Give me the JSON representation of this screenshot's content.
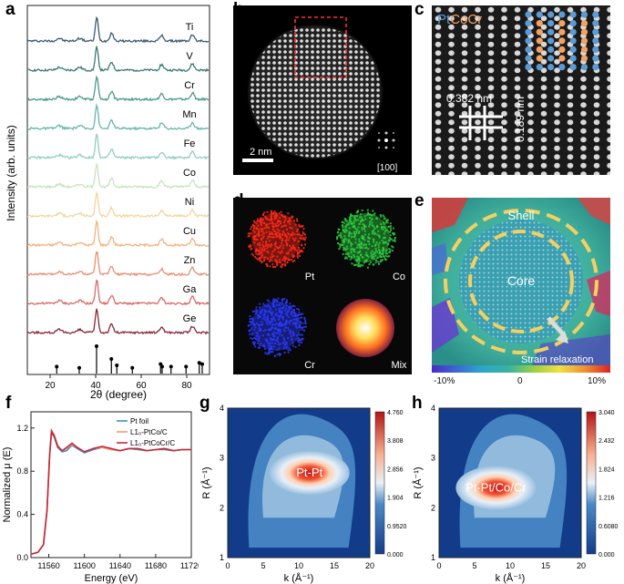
{
  "panels": {
    "a": "a",
    "b": "b",
    "c": "c",
    "d": "d",
    "e": "e",
    "f": "f",
    "g": "g",
    "h": "h"
  },
  "panel_a": {
    "ylabel": "Intensity (arb. units)",
    "xlabel": "2θ (degree)",
    "elements": [
      "Ti",
      "V",
      "Cr",
      "Mn",
      "Fe",
      "Co",
      "Ni",
      "Cu",
      "Zn",
      "Ga",
      "Ge"
    ],
    "colors": [
      "#3c5a78",
      "#3a7a72",
      "#4a9a8a",
      "#66b6a8",
      "#8fcdbf",
      "#c9e2c0",
      "#f5d49c",
      "#f3b17e",
      "#e98f74",
      "#d86a6a",
      "#8a2438"
    ],
    "xticks": [
      "20",
      "40",
      "60",
      "80"
    ],
    "xrange": [
      10,
      90
    ],
    "reference_sticks": [
      {
        "x": 22.9,
        "h": 0.2
      },
      {
        "x": 32.8,
        "h": 0.15
      },
      {
        "x": 40.4,
        "h": 1.0
      },
      {
        "x": 46.9,
        "h": 0.5
      },
      {
        "x": 49.3,
        "h": 0.25
      },
      {
        "x": 56.1,
        "h": 0.15
      },
      {
        "x": 68.5,
        "h": 0.3
      },
      {
        "x": 69.2,
        "h": 0.2
      },
      {
        "x": 73.1,
        "h": 0.2
      },
      {
        "x": 79.7,
        "h": 0.2
      },
      {
        "x": 85.5,
        "h": 0.35
      },
      {
        "x": 86.8,
        "h": 0.3
      }
    ]
  },
  "panel_b": {
    "scalebar": "2 nm",
    "zone_axis": "[100]"
  },
  "panel_c": {
    "legend_pt": "Pt",
    "legend_cocr": "CoCr",
    "spacing_h": "0.382 nm",
    "spacing_v": "0.189 nm",
    "pt_color": "#5b9bd5",
    "cocr_color": "#f4a261"
  },
  "panel_d": {
    "maps": [
      {
        "label": "Pt",
        "color": "#ff2a1a"
      },
      {
        "label": "Co",
        "color": "#2ecc40"
      },
      {
        "label": "Cr",
        "color": "#2a3aff"
      },
      {
        "label": "Mix",
        "color": "#ffcc00"
      }
    ]
  },
  "panel_e": {
    "shell_label": "Shell",
    "core_label": "Core",
    "arrow_label": "Strain relaxation",
    "colorbar_ticks": [
      "-10%",
      "0",
      "10%"
    ]
  },
  "chart_data": [
    {
      "type": "line",
      "panel": "f",
      "xlabel": "Energy (eV)",
      "ylabel": "Normalized μ (E)",
      "xlim": [
        11540,
        11720
      ],
      "ylim": [
        0.0,
        1.35
      ],
      "xticks": [
        "11560",
        "11600",
        "11640",
        "11680",
        "11720"
      ],
      "yticks": [
        "0.0",
        "0.4",
        "0.8",
        "1.2"
      ],
      "series": [
        {
          "name": "Pt foil",
          "color": "#3c8fc2",
          "x": [
            11540,
            11548,
            11554,
            11558,
            11561,
            11563,
            11566,
            11570,
            11575,
            11580,
            11586,
            11592,
            11600,
            11610,
            11620,
            11630,
            11640,
            11650,
            11660,
            11670,
            11680,
            11690,
            11700,
            11710,
            11720
          ],
          "y": [
            0.03,
            0.05,
            0.12,
            0.45,
            0.95,
            1.15,
            1.12,
            1.02,
            0.98,
            0.99,
            1.04,
            1.01,
            0.97,
            1.0,
            1.02,
            1.0,
            0.99,
            1.01,
            1.0,
            0.99,
            1.0,
            1.0,
            0.99,
            1.0,
            1.0
          ]
        },
        {
          "name": "L1₀-PtCo/C",
          "color": "#f0a070",
          "x": [
            11540,
            11548,
            11554,
            11558,
            11561,
            11563,
            11566,
            11570,
            11575,
            11580,
            11586,
            11592,
            11600,
            11610,
            11620,
            11630,
            11640,
            11650,
            11660,
            11670,
            11680,
            11690,
            11700,
            11710,
            11720
          ],
          "y": [
            0.03,
            0.05,
            0.12,
            0.44,
            0.96,
            1.18,
            1.14,
            1.04,
            0.99,
            1.01,
            1.05,
            1.02,
            0.98,
            1.01,
            1.02,
            1.0,
            0.99,
            1.01,
            1.01,
            0.99,
            1.0,
            1.01,
            0.99,
            1.0,
            1.0
          ]
        },
        {
          "name": "L1₀-PtCoCr/C",
          "color": "#c8283a",
          "x": [
            11540,
            11548,
            11554,
            11558,
            11561,
            11563,
            11566,
            11570,
            11575,
            11580,
            11586,
            11592,
            11600,
            11610,
            11620,
            11630,
            11640,
            11650,
            11660,
            11670,
            11680,
            11690,
            11700,
            11710,
            11720
          ],
          "y": [
            0.03,
            0.05,
            0.12,
            0.43,
            0.95,
            1.17,
            1.13,
            1.03,
            0.99,
            1.02,
            1.06,
            1.02,
            0.98,
            1.01,
            1.03,
            1.01,
            0.99,
            1.01,
            1.01,
            0.99,
            1.0,
            1.01,
            0.99,
            1.0,
            1.0
          ]
        }
      ]
    },
    {
      "type": "heatmap",
      "panel": "g",
      "annotation": "Pt-Pt",
      "xlabel": "k (Å⁻¹)",
      "ylabel": "R (Å⁻¹)",
      "xlim": [
        0,
        20
      ],
      "ylim": [
        1,
        4
      ],
      "xticks": [
        "0",
        "5",
        "10",
        "15",
        "20"
      ],
      "yticks": [
        "1",
        "2",
        "3",
        "4"
      ],
      "colorbar_ticks": [
        "4.760",
        "3.808",
        "2.856",
        "1.904",
        "0.9520",
        "0.000"
      ],
      "peak": {
        "k": 11.5,
        "R": 2.7,
        "value": 4.76
      }
    },
    {
      "type": "heatmap",
      "panel": "h",
      "annotation": "Pt-Pt/Co/Cr",
      "xlabel": "k (Å⁻¹)",
      "ylabel": "R (Å⁻¹)",
      "xlim": [
        0,
        20
      ],
      "ylim": [
        1,
        4
      ],
      "xticks": [
        "0",
        "5",
        "10",
        "15",
        "20"
      ],
      "yticks": [
        "1",
        "2",
        "3",
        "4"
      ],
      "colorbar_ticks": [
        "3.040",
        "2.432",
        "1.824",
        "1.216",
        "0.6080",
        "0.000"
      ],
      "peak": {
        "k": 8.0,
        "R": 2.4,
        "value": 3.04
      }
    }
  ]
}
